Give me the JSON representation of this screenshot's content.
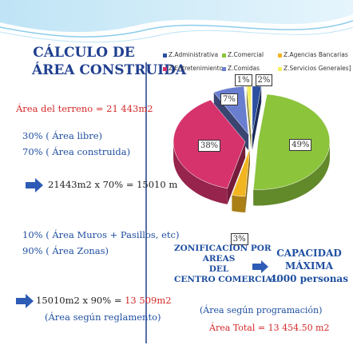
{
  "left": {
    "title_line1": "CÁLCULO DE",
    "title_line2": "ÁREA CONSTRUIDA",
    "terreno": "Área del terreno = 21 443m2",
    "libre": "30% ( Área libre)",
    "construida": "70% ( Área construida)",
    "calc1": "21443m2  x  70%  = 15010 m",
    "muros": "10% ( Área Muros + Pasillos, etc)",
    "zonas": "90% ( Área Zonas)",
    "calc2_prefix": "15010m2  x  90%  =",
    "calc2_result": "13 509m2",
    "reglamento": "(Área según reglamento)"
  },
  "right": {
    "zonificacion": [
      "ZONIFICACION POR",
      "AREAS",
      "DEL",
      "CENTRO COMERCIAL"
    ],
    "capacidad": [
      "CAPACIDAD",
      "MÁXIMA",
      "4000 personas"
    ],
    "programacion": "(Área según programación)",
    "total": "Área Total = 13 454.50 m2"
  },
  "chart_data": {
    "type": "pie",
    "title": "",
    "legend_position": "top",
    "series": [
      {
        "name": "Z.Administrativa",
        "value": 2,
        "label": "2%",
        "color": "#2d4fa0"
      },
      {
        "name": "Z.Comercial",
        "value": 49,
        "label": "49%",
        "color": "#8cc43c"
      },
      {
        "name": "Z.Agencias Bancarias",
        "value": 3,
        "label": "3%",
        "color": "#f2b51f"
      },
      {
        "name": "Z.Entretenimiento",
        "value": 38,
        "label": "38%",
        "color": "#d6336c"
      },
      {
        "name": "Z.Comidas",
        "value": 7,
        "label": "7%",
        "color": "#6a7ed0"
      },
      {
        "name": "Z.Servicios Generales",
        "value": 1,
        "label": "1%",
        "color": "#f5f060"
      }
    ],
    "legend_labels": [
      "Z.Administrativa",
      "Z.Comercial",
      "Z.Agencias Bancarias",
      "Z.Entretenimiento",
      "Z.Comidas",
      "Z.Servicios Generales]"
    ]
  }
}
